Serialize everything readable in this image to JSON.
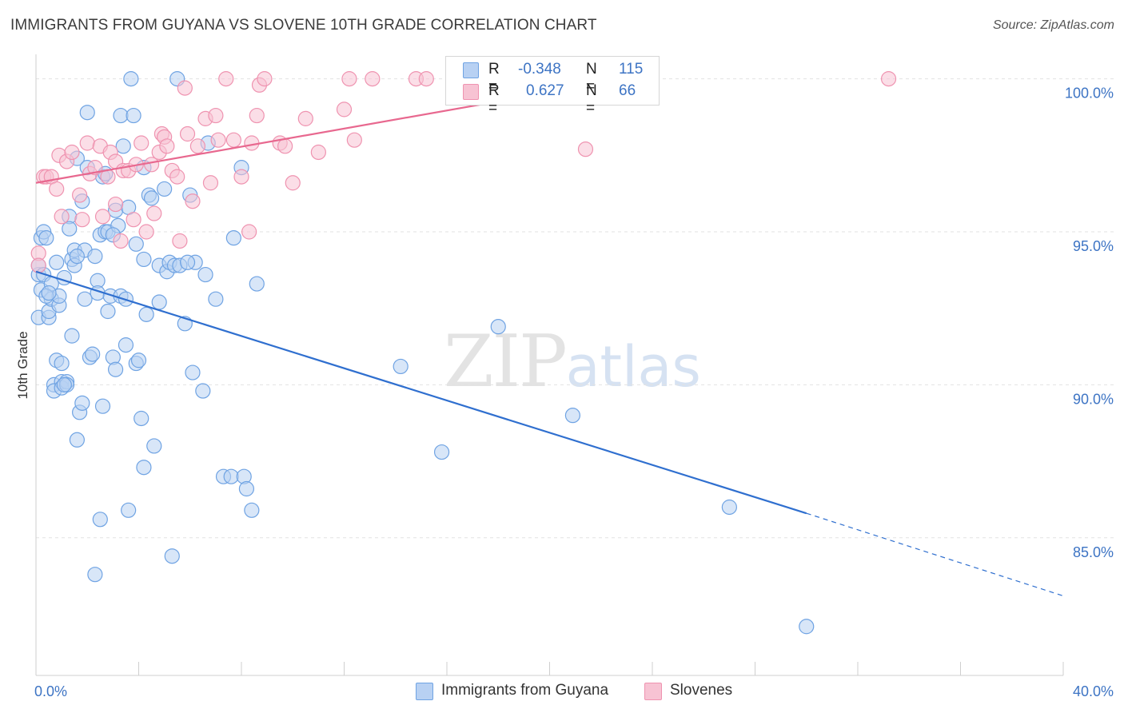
{
  "title": "IMMIGRANTS FROM GUYANA VS SLOVENE 10TH GRADE CORRELATION CHART",
  "source": "Source: ZipAtlas.com",
  "watermark": {
    "zip": "ZIP",
    "atlas": "atlas"
  },
  "colors": {
    "blue": "#6fa3e3",
    "blue_fill": "#b8d1f3",
    "blue_line": "#2f6fcf",
    "pink": "#ef93b0",
    "pink_fill": "#f7c3d3",
    "pink_line": "#e8688f",
    "tick_text": "#3d74c4",
    "grid": "#e2e2e2"
  },
  "legend": {
    "rows": [
      {
        "r_label": "R =",
        "r_value": "-0.348",
        "n_label": "N =",
        "n_value": "115"
      },
      {
        "r_label": "R =",
        "r_value": "0.627",
        "n_label": "N =",
        "n_value": "66"
      }
    ]
  },
  "bottom_legend": {
    "series1": "Immigrants from Guyana",
    "series2": "Slovenes"
  },
  "chart_data": {
    "type": "scatter",
    "title": "IMMIGRANTS FROM GUYANA VS SLOVENE 10TH GRADE CORRELATION CHART",
    "xlabel": "",
    "ylabel": "10th Grade",
    "xlim": [
      0,
      40
    ],
    "ylim": [
      80.5,
      100.8
    ],
    "x_tick_labels": [
      "0.0%",
      "40.0%"
    ],
    "y_ticks": [
      85,
      90,
      95,
      100
    ],
    "y_tick_labels": [
      "85.0%",
      "90.0%",
      "95.0%",
      "100.0%"
    ],
    "grid": true,
    "legend_position": "top-center",
    "series": [
      {
        "name": "Immigrants from Guyana",
        "color": "#6fa3e3",
        "trend": {
          "x0": 0,
          "y0": 93.7,
          "x1": 30.0,
          "y1": 85.8,
          "dash_to_x": 40.0,
          "dash_to_y": 83.1
        },
        "points": [
          [
            0.1,
            92.2
          ],
          [
            0.1,
            93.6
          ],
          [
            0.1,
            93.9
          ],
          [
            0.2,
            94.8
          ],
          [
            0.2,
            93.1
          ],
          [
            0.3,
            93.6
          ],
          [
            0.3,
            95.0
          ],
          [
            0.4,
            94.8
          ],
          [
            0.5,
            92.2
          ],
          [
            0.5,
            92.4
          ],
          [
            0.6,
            92.8
          ],
          [
            0.6,
            93.3
          ],
          [
            0.7,
            90.0
          ],
          [
            0.7,
            89.8
          ],
          [
            0.8,
            90.8
          ],
          [
            0.8,
            94.0
          ],
          [
            0.9,
            92.6
          ],
          [
            0.9,
            92.9
          ],
          [
            1.0,
            90.1
          ],
          [
            1.0,
            90.7
          ],
          [
            1.0,
            89.9
          ],
          [
            1.1,
            93.5
          ],
          [
            1.2,
            90.1
          ],
          [
            1.2,
            90.0
          ],
          [
            1.3,
            95.5
          ],
          [
            1.3,
            95.1
          ],
          [
            1.4,
            94.1
          ],
          [
            1.4,
            91.6
          ],
          [
            1.5,
            94.4
          ],
          [
            1.5,
            93.9
          ],
          [
            1.6,
            88.2
          ],
          [
            1.6,
            97.4
          ],
          [
            1.7,
            89.1
          ],
          [
            1.8,
            89.4
          ],
          [
            1.8,
            96.0
          ],
          [
            1.9,
            92.8
          ],
          [
            1.9,
            94.4
          ],
          [
            2.0,
            97.1
          ],
          [
            2.0,
            98.9
          ],
          [
            2.1,
            90.9
          ],
          [
            2.2,
            91.0
          ],
          [
            2.3,
            94.2
          ],
          [
            2.4,
            93.4
          ],
          [
            2.4,
            93.0
          ],
          [
            2.5,
            85.6
          ],
          [
            2.5,
            94.9
          ],
          [
            2.6,
            89.3
          ],
          [
            2.6,
            96.8
          ],
          [
            2.7,
            95.0
          ],
          [
            2.8,
            95.0
          ],
          [
            2.8,
            92.4
          ],
          [
            2.9,
            92.9
          ],
          [
            3.0,
            90.9
          ],
          [
            3.1,
            90.5
          ],
          [
            3.1,
            95.7
          ],
          [
            3.2,
            95.2
          ],
          [
            3.3,
            92.9
          ],
          [
            3.3,
            98.8
          ],
          [
            3.4,
            97.8
          ],
          [
            3.5,
            91.3
          ],
          [
            3.5,
            92.8
          ],
          [
            3.6,
            85.9
          ],
          [
            3.6,
            95.8
          ],
          [
            3.7,
            100.0
          ],
          [
            3.8,
            98.8
          ],
          [
            3.9,
            94.6
          ],
          [
            3.9,
            90.7
          ],
          [
            4.0,
            90.8
          ],
          [
            4.1,
            88.9
          ],
          [
            4.2,
            97.1
          ],
          [
            4.2,
            94.1
          ],
          [
            4.3,
            92.3
          ],
          [
            4.4,
            96.2
          ],
          [
            4.5,
            96.1
          ],
          [
            4.6,
            88.0
          ],
          [
            4.8,
            92.7
          ],
          [
            4.8,
            93.9
          ],
          [
            5.0,
            96.4
          ],
          [
            5.1,
            93.7
          ],
          [
            5.2,
            94.0
          ],
          [
            5.3,
            84.4
          ],
          [
            5.4,
            93.9
          ],
          [
            5.5,
            100.0
          ],
          [
            5.6,
            93.9
          ],
          [
            5.8,
            92.0
          ],
          [
            6.0,
            96.2
          ],
          [
            6.1,
            90.4
          ],
          [
            6.2,
            94.0
          ],
          [
            6.5,
            89.8
          ],
          [
            6.6,
            93.6
          ],
          [
            6.7,
            97.9
          ],
          [
            7.0,
            92.8
          ],
          [
            7.3,
            87.0
          ],
          [
            7.6,
            87.0
          ],
          [
            7.7,
            94.8
          ],
          [
            8.0,
            97.1
          ],
          [
            8.1,
            87.0
          ],
          [
            8.2,
            86.6
          ],
          [
            8.4,
            85.9
          ],
          [
            8.6,
            93.3
          ],
          [
            14.2,
            90.6
          ],
          [
            15.8,
            87.8
          ],
          [
            18.0,
            91.9
          ],
          [
            20.9,
            89.0
          ],
          [
            27.0,
            86.0
          ],
          [
            30.0,
            82.1
          ],
          [
            0.4,
            92.9
          ],
          [
            2.3,
            83.8
          ],
          [
            4.2,
            87.3
          ],
          [
            1.1,
            90.0
          ],
          [
            5.9,
            94.0
          ],
          [
            0.5,
            93.0
          ],
          [
            1.6,
            94.2
          ],
          [
            3.0,
            94.9
          ],
          [
            2.7,
            96.9
          ]
        ]
      },
      {
        "name": "Slovenes",
        "color": "#ef93b0",
        "trend": {
          "x0": 0,
          "y0": 96.6,
          "x1": 23.0,
          "y1": 100.0
        },
        "points": [
          [
            0.1,
            94.3
          ],
          [
            0.1,
            93.9
          ],
          [
            0.3,
            96.8
          ],
          [
            0.4,
            96.8
          ],
          [
            0.6,
            96.8
          ],
          [
            0.8,
            96.4
          ],
          [
            0.9,
            97.5
          ],
          [
            1.0,
            95.5
          ],
          [
            1.2,
            97.3
          ],
          [
            1.4,
            97.6
          ],
          [
            1.7,
            96.2
          ],
          [
            1.8,
            95.4
          ],
          [
            2.0,
            97.9
          ],
          [
            2.1,
            96.9
          ],
          [
            2.3,
            97.1
          ],
          [
            2.5,
            97.8
          ],
          [
            2.6,
            95.5
          ],
          [
            2.8,
            96.8
          ],
          [
            2.9,
            97.6
          ],
          [
            3.1,
            97.3
          ],
          [
            3.1,
            95.9
          ],
          [
            3.3,
            94.7
          ],
          [
            3.4,
            97.0
          ],
          [
            3.6,
            97.0
          ],
          [
            3.8,
            95.4
          ],
          [
            3.9,
            97.2
          ],
          [
            4.1,
            97.9
          ],
          [
            4.3,
            95.0
          ],
          [
            4.5,
            97.2
          ],
          [
            4.6,
            95.6
          ],
          [
            4.8,
            97.6
          ],
          [
            4.9,
            98.2
          ],
          [
            5.0,
            98.1
          ],
          [
            5.1,
            97.8
          ],
          [
            5.3,
            97.0
          ],
          [
            5.5,
            96.8
          ],
          [
            5.6,
            94.7
          ],
          [
            5.8,
            99.7
          ],
          [
            5.9,
            98.2
          ],
          [
            6.1,
            96.0
          ],
          [
            6.3,
            97.8
          ],
          [
            6.6,
            98.7
          ],
          [
            6.8,
            96.6
          ],
          [
            7.0,
            98.8
          ],
          [
            7.1,
            98.0
          ],
          [
            7.4,
            100.0
          ],
          [
            7.7,
            98.0
          ],
          [
            8.0,
            96.8
          ],
          [
            8.3,
            95.0
          ],
          [
            8.4,
            97.9
          ],
          [
            8.6,
            98.8
          ],
          [
            8.7,
            99.8
          ],
          [
            8.9,
            100.0
          ],
          [
            9.5,
            97.9
          ],
          [
            9.7,
            97.8
          ],
          [
            10.0,
            96.6
          ],
          [
            10.5,
            98.7
          ],
          [
            11.0,
            97.6
          ],
          [
            12.0,
            99.0
          ],
          [
            12.4,
            98.0
          ],
          [
            12.2,
            100.0
          ],
          [
            13.1,
            100.0
          ],
          [
            14.8,
            100.0
          ],
          [
            15.2,
            100.0
          ],
          [
            21.4,
            97.7
          ],
          [
            33.2,
            100.0
          ]
        ]
      }
    ]
  }
}
